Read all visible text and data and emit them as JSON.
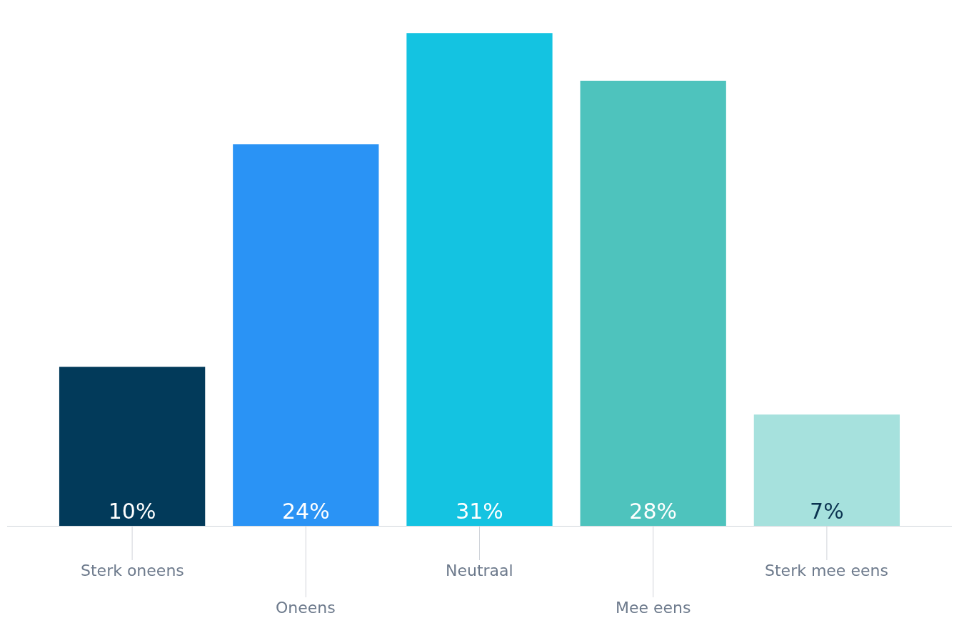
{
  "chart_data": {
    "type": "bar",
    "categories": [
      "Sterk oneens",
      "Oneens",
      "Neutraal",
      "Mee eens",
      "Sterk mee eens"
    ],
    "values": [
      10,
      24,
      31,
      28,
      7
    ],
    "value_labels": [
      "10%",
      "24%",
      "31%",
      "28%",
      "7%"
    ],
    "colors": [
      "#023a5a",
      "#2a93f5",
      "#14c3e1",
      "#4ec3bd",
      "#a6e1dd"
    ],
    "tick_labels": "x"
  }
}
